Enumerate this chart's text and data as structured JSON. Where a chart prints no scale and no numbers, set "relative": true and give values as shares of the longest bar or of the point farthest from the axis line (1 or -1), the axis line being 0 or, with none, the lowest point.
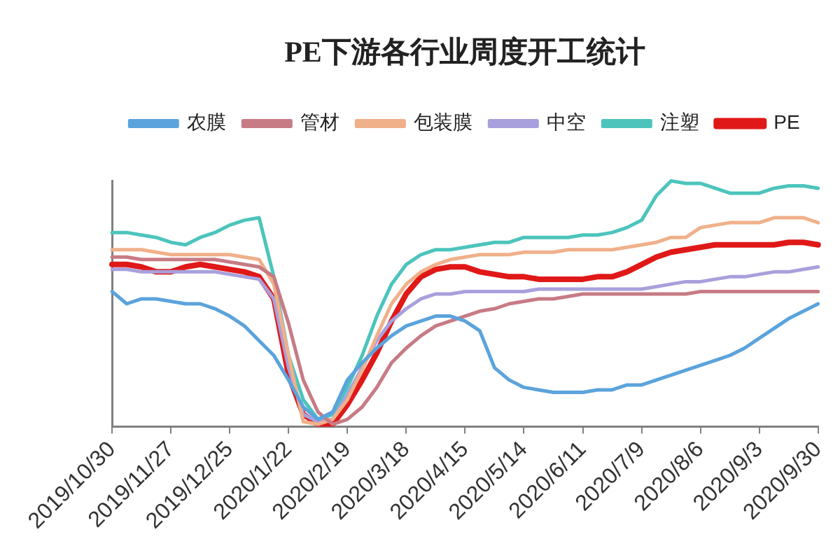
{
  "chart_data": {
    "type": "line",
    "title": "PE下游各行业周度开工统计",
    "categories": [
      "2019/10/30",
      null,
      null,
      null,
      "2019/11/27",
      null,
      null,
      null,
      "2019/12/25",
      null,
      null,
      null,
      "2020/1/22",
      null,
      null,
      null,
      "2020/2/19",
      null,
      null,
      null,
      "2020/3/18",
      null,
      null,
      null,
      "2020/4/15",
      null,
      null,
      null,
      "2020/5/14",
      null,
      null,
      null,
      "2020/6/11",
      null,
      null,
      null,
      "2020/7/9",
      null,
      null,
      null,
      "2020/8/6",
      null,
      null,
      null,
      "2020/9/3",
      null,
      null,
      null,
      "2020/9/30"
    ],
    "relative": true,
    "legend": "top",
    "tick_labels": "x",
    "series": [
      {
        "name": "农膜",
        "color": "#5ba3dc",
        "values": [
          0.55,
          0.5,
          0.52,
          0.52,
          0.51,
          0.5,
          0.5,
          0.48,
          0.45,
          0.41,
          0.35,
          0.29,
          0.19,
          0.08,
          0.03,
          0.06,
          0.19,
          0.26,
          0.32,
          0.37,
          0.41,
          0.43,
          0.45,
          0.45,
          0.43,
          0.39,
          0.24,
          0.19,
          0.16,
          0.15,
          0.14,
          0.14,
          0.14,
          0.15,
          0.15,
          0.17,
          0.17,
          0.19,
          0.21,
          0.23,
          0.25,
          0.27,
          0.29,
          0.32,
          0.36,
          0.4,
          0.44,
          0.47,
          0.5
        ]
      },
      {
        "name": "管材",
        "color": "#c77b85",
        "values": [
          0.69,
          0.69,
          0.68,
          0.68,
          0.68,
          0.68,
          0.68,
          0.68,
          0.67,
          0.66,
          0.65,
          0.61,
          0.42,
          0.19,
          0.06,
          0.01,
          0.03,
          0.08,
          0.16,
          0.26,
          0.32,
          0.37,
          0.41,
          0.43,
          0.45,
          0.47,
          0.48,
          0.5,
          0.51,
          0.52,
          0.52,
          0.53,
          0.54,
          0.54,
          0.54,
          0.54,
          0.54,
          0.54,
          0.54,
          0.54,
          0.55,
          0.55,
          0.55,
          0.55,
          0.55,
          0.55,
          0.55,
          0.55,
          0.55
        ]
      },
      {
        "name": "包装膜",
        "color": "#f0b08a",
        "values": [
          0.72,
          0.72,
          0.72,
          0.71,
          0.7,
          0.7,
          0.7,
          0.7,
          0.7,
          0.69,
          0.68,
          0.58,
          0.29,
          0.02,
          0.01,
          0.03,
          0.11,
          0.23,
          0.37,
          0.5,
          0.58,
          0.63,
          0.66,
          0.68,
          0.69,
          0.7,
          0.7,
          0.7,
          0.71,
          0.71,
          0.71,
          0.72,
          0.72,
          0.72,
          0.72,
          0.73,
          0.74,
          0.75,
          0.77,
          0.77,
          0.81,
          0.82,
          0.83,
          0.83,
          0.83,
          0.85,
          0.85,
          0.85,
          0.83
        ]
      },
      {
        "name": "中空",
        "color": "#a8a0dc",
        "values": [
          0.64,
          0.64,
          0.63,
          0.63,
          0.63,
          0.63,
          0.63,
          0.63,
          0.62,
          0.61,
          0.6,
          0.52,
          0.24,
          0.05,
          0.02,
          0.03,
          0.13,
          0.24,
          0.35,
          0.43,
          0.48,
          0.52,
          0.54,
          0.54,
          0.55,
          0.55,
          0.55,
          0.55,
          0.55,
          0.56,
          0.56,
          0.56,
          0.56,
          0.56,
          0.56,
          0.56,
          0.56,
          0.57,
          0.58,
          0.59,
          0.59,
          0.6,
          0.61,
          0.61,
          0.62,
          0.63,
          0.63,
          0.64,
          0.65
        ]
      },
      {
        "name": "注塑",
        "color": "#4cc4bc",
        "values": [
          0.79,
          0.79,
          0.78,
          0.77,
          0.75,
          0.74,
          0.77,
          0.79,
          0.82,
          0.84,
          0.85,
          0.61,
          0.29,
          0.11,
          0.03,
          0.05,
          0.16,
          0.29,
          0.45,
          0.58,
          0.66,
          0.7,
          0.72,
          0.72,
          0.73,
          0.74,
          0.75,
          0.75,
          0.77,
          0.77,
          0.77,
          0.77,
          0.78,
          0.78,
          0.79,
          0.81,
          0.84,
          0.94,
          1,
          0.99,
          0.99,
          0.97,
          0.95,
          0.95,
          0.95,
          0.97,
          0.98,
          0.98,
          0.97
        ]
      },
      {
        "name": "PE",
        "color": "#e01818",
        "values": [
          0.66,
          0.66,
          0.65,
          0.63,
          0.63,
          0.65,
          0.66,
          0.65,
          0.64,
          0.63,
          0.61,
          0.52,
          0.21,
          0.05,
          0.01,
          0.01,
          0.09,
          0.19,
          0.3,
          0.43,
          0.54,
          0.61,
          0.64,
          0.65,
          0.65,
          0.63,
          0.62,
          0.61,
          0.61,
          0.6,
          0.6,
          0.6,
          0.6,
          0.61,
          0.61,
          0.63,
          0.66,
          0.69,
          0.71,
          0.72,
          0.73,
          0.74,
          0.74,
          0.74,
          0.74,
          0.74,
          0.75,
          0.75,
          0.74
        ]
      }
    ]
  }
}
